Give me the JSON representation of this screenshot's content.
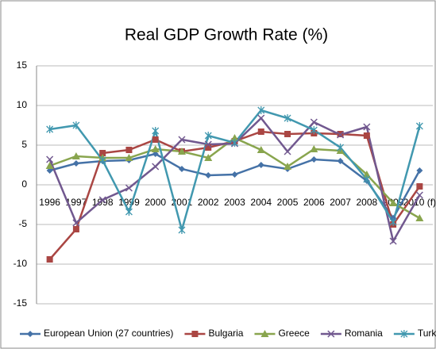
{
  "chart_data": {
    "type": "line",
    "title": "Real GDP Growth Rate (%)",
    "categories": [
      "1996",
      "1997",
      "1998",
      "1999",
      "2000",
      "2001",
      "2002",
      "2003",
      "2004",
      "2005",
      "2006",
      "2007",
      "2008",
      "2009",
      "2010 (f)"
    ],
    "series": [
      {
        "name": "European Union (27 countries)",
        "color": "#4572A7",
        "marker": "diamond",
        "values": [
          1.8,
          2.7,
          3.0,
          3.1,
          3.9,
          2.0,
          1.2,
          1.3,
          2.5,
          2.0,
          3.2,
          3.0,
          0.5,
          -4.2,
          1.8
        ]
      },
      {
        "name": "Bulgaria",
        "color": "#AA4643",
        "marker": "square",
        "values": [
          -9.4,
          -5.6,
          4.0,
          4.4,
          5.7,
          4.2,
          4.7,
          5.5,
          6.7,
          6.4,
          6.5,
          6.4,
          6.2,
          -5.0,
          -0.2
        ]
      },
      {
        "name": "Greece",
        "color": "#89A54E",
        "marker": "triangle",
        "values": [
          2.4,
          3.6,
          3.4,
          3.4,
          4.5,
          4.2,
          3.4,
          5.9,
          4.4,
          2.3,
          4.5,
          4.3,
          1.3,
          -2.3,
          -4.2
        ]
      },
      {
        "name": "Romania",
        "color": "#71588F",
        "marker": "x",
        "values": [
          3.2,
          -4.8,
          -1.9,
          -0.4,
          2.3,
          5.7,
          5.1,
          5.2,
          8.4,
          4.2,
          7.9,
          6.3,
          7.3,
          -7.1,
          -1.3
        ]
      },
      {
        "name": "Turkey",
        "color": "#4198AF",
        "marker": "star",
        "values": [
          7.0,
          7.5,
          3.1,
          -3.4,
          6.8,
          -5.7,
          6.2,
          5.3,
          9.4,
          8.4,
          6.9,
          4.7,
          0.7,
          -4.7,
          7.4
        ]
      }
    ],
    "ylim": [
      -15,
      15
    ],
    "yticks": [
      -15,
      -10,
      -5,
      0,
      5,
      10,
      15
    ],
    "grid": true,
    "legend": "bottom"
  }
}
